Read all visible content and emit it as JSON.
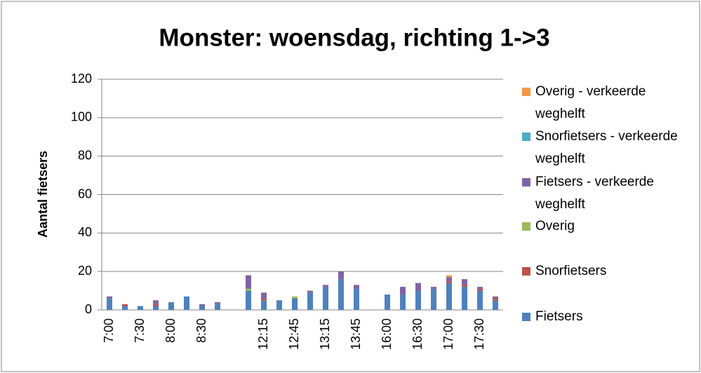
{
  "chart_data": {
    "type": "bar",
    "stacked": true,
    "title": "Monster: woensdag, richting 1->3",
    "y_label": "Aantal fietsers",
    "categories": [
      "7:00",
      null,
      "7:30",
      null,
      "8:00",
      null,
      "8:30",
      null,
      null,
      null,
      "12:15",
      null,
      "12:45",
      null,
      "13:15",
      null,
      "13:45",
      null,
      "16:00",
      null,
      "16:30",
      null,
      "17:00",
      null,
      "17:30",
      null
    ],
    "ylim": [
      0,
      120
    ],
    "yticks": [
      0,
      20,
      40,
      60,
      80,
      100,
      120
    ],
    "grid": true,
    "legend": "right",
    "series": [
      {
        "name": "Fietsers",
        "color": "#4f81bd",
        "values": [
          6,
          2,
          2,
          2,
          4,
          7,
          2,
          3,
          null,
          10,
          5,
          5,
          6,
          9,
          12,
          16,
          11,
          null,
          8,
          8,
          10,
          11,
          14,
          12,
          10,
          5
        ]
      },
      {
        "name": "Snorfietsers",
        "color": "#c0504d",
        "values": [
          0,
          1,
          0,
          1,
          0,
          0,
          0,
          0,
          null,
          0,
          1,
          0,
          0,
          0,
          0,
          0,
          0,
          null,
          0,
          0,
          0,
          0,
          1,
          1,
          1,
          1
        ]
      },
      {
        "name": "Overig",
        "color": "#9bbb59",
        "values": [
          0,
          0,
          0,
          0,
          0,
          0,
          0,
          0,
          null,
          1,
          0,
          0,
          1,
          0,
          0,
          0,
          0,
          null,
          0,
          0,
          0,
          0,
          0,
          0,
          0,
          0
        ]
      },
      {
        "name": "Fietsers - verkeerde weghelft",
        "color": "#8064a2",
        "values": [
          1,
          0,
          0,
          2,
          0,
          0,
          1,
          1,
          null,
          7,
          3,
          0,
          0,
          1,
          1,
          4,
          2,
          null,
          0,
          4,
          4,
          1,
          2,
          3,
          1,
          1
        ]
      },
      {
        "name": "Snorfietsers - verkeerde weghelft",
        "color": "#4bacc6",
        "values": [
          0,
          0,
          0,
          0,
          0,
          0,
          0,
          0,
          null,
          0,
          0,
          0,
          0,
          0,
          0,
          0,
          0,
          null,
          0,
          0,
          0,
          0,
          0,
          0,
          0,
          0
        ]
      },
      {
        "name": "Overig - verkeerde weghelft",
        "color": "#f79646",
        "values": [
          0,
          0,
          0,
          0,
          0,
          0,
          0,
          0,
          null,
          0,
          0,
          0,
          0,
          0,
          0,
          0,
          0,
          null,
          0,
          0,
          0,
          0,
          1,
          0,
          0,
          0
        ]
      }
    ]
  }
}
